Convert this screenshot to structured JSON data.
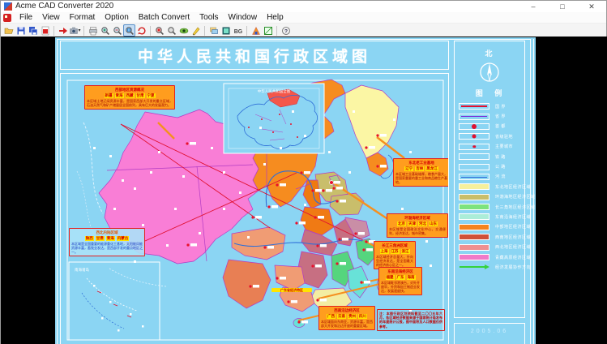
{
  "window": {
    "title": "Acme CAD Converter 2020",
    "controls": [
      {
        "name": "minimize-button",
        "glyph": "–"
      },
      {
        "name": "maximize-button",
        "glyph": "□"
      },
      {
        "name": "close-button",
        "glyph": "✕"
      }
    ]
  },
  "menu": {
    "items": [
      "File",
      "View",
      "Format",
      "Option",
      "Batch Convert",
      "Tools",
      "Window",
      "Help"
    ]
  },
  "toolbar": {
    "buttons": [
      {
        "name": "open-icon",
        "kind": "folder"
      },
      {
        "name": "save-icon",
        "kind": "floppy"
      },
      {
        "name": "save-all-icon",
        "kind": "floppy2"
      },
      {
        "name": "pdf-export-icon",
        "kind": "doc-red"
      },
      {
        "name": "sep"
      },
      {
        "name": "convert-icon",
        "kind": "arrow-red"
      },
      {
        "name": "capture-icon",
        "kind": "camera",
        "caret": true
      },
      {
        "name": "sep"
      },
      {
        "name": "print-icon",
        "kind": "printer"
      },
      {
        "name": "zoom-in-icon",
        "kind": "zoom-plus"
      },
      {
        "name": "zoom-out-icon",
        "kind": "zoom-minus"
      },
      {
        "name": "zoom-window-icon",
        "kind": "zoom-area",
        "active": true
      },
      {
        "name": "zoom-extents-icon",
        "kind": "refresh-red"
      },
      {
        "name": "sep"
      },
      {
        "name": "find-text-icon",
        "kind": "zoom-red"
      },
      {
        "name": "find-next-icon",
        "kind": "zoom-gray"
      },
      {
        "name": "view-mode-icon",
        "kind": "eye"
      },
      {
        "name": "edit-icon",
        "kind": "pen-yellow"
      },
      {
        "name": "sep"
      },
      {
        "name": "layers-icon",
        "kind": "layers"
      },
      {
        "name": "layout-icon",
        "kind": "badge-dark"
      },
      {
        "name": "background-color-icon",
        "kind": "badge-bg",
        "text": "BG"
      },
      {
        "name": "sep"
      },
      {
        "name": "font-icon",
        "kind": "tri-orange"
      },
      {
        "name": "color-box-icon",
        "kind": "box-green"
      },
      {
        "name": "sep"
      },
      {
        "name": "about-icon",
        "kind": "info"
      }
    ]
  },
  "document": {
    "map_title": "中华人民共和国行政区域图",
    "inset_title": "中华人民共和国全图",
    "scs_label": "南海诸岛",
    "date": "2005.06",
    "legend": {
      "north_label": "北",
      "heading": "图 例",
      "symbol_items": [
        {
          "type": "line-red",
          "label": "国 界"
        },
        {
          "type": "line-purple",
          "label": "省 界"
        },
        {
          "type": "dot-lg",
          "label": "首 都"
        },
        {
          "type": "dot-md",
          "label": "省级驻地"
        },
        {
          "type": "dot-sm",
          "label": "主要城市"
        },
        {
          "type": "box-empty",
          "label": "铁 路"
        },
        {
          "type": "box-empty",
          "label": "公 路"
        },
        {
          "type": "river",
          "label": "河 流"
        }
      ],
      "color_items": [
        {
          "color": "#F6F09C",
          "label": "东北地区经济区域"
        },
        {
          "color": "#C9BE6B",
          "label": "环渤海地区经济区域"
        },
        {
          "color": "#7DE37D",
          "label": "长三角地区经济区域"
        },
        {
          "color": "#ABEDD8",
          "label": "东南沿海经济区域"
        },
        {
          "color": "#F5831F",
          "label": "中部地区经济区域"
        },
        {
          "color": "#D05038",
          "label": "西南地区经济区域"
        },
        {
          "color": "#EF9090",
          "label": "西北地区经济区域"
        },
        {
          "color": "#F07AC8",
          "label": "青藏高原经济区域"
        }
      ],
      "arrow_item": {
        "label": "经济发展协作方向"
      }
    },
    "callouts": [
      {
        "title": "西部地区资源概况",
        "names": [
          "新疆",
          "青海",
          "西藏",
          "甘肃",
          "宁夏"
        ],
        "body": "本区域土地辽阔资源丰富，是国家西部大开发的重点区域，石油天然气和矿产储量居全国前列，具有巨大的发展潜力。"
      },
      {
        "title": "东北老工业基地",
        "names": [
          "辽宁",
          "吉林",
          "黑龙江"
        ],
        "body": "本区域工业基础雄厚，粮食产量大，是国家重要的重工业和商品粮生产基地。"
      },
      {
        "title": "环渤海经济区域",
        "names": [
          "北京",
          "天津",
          "河北",
          "山东"
        ],
        "body": "本区域是全国政治文化中心，交通便利，经济发达，城市密集。"
      },
      {
        "title": "长江三角洲区域",
        "names": [
          "上海",
          "江苏",
          "浙江"
        ],
        "body": "本区域经济总量大，外向型经济发达，是全国最大的经济核心区之一。"
      },
      {
        "title": "东南沿海经济区",
        "names": [
          "福建",
          "广东",
          "海南"
        ],
        "body": "本区域毗邻港澳台，对外开放早，外贸和加工制造业发达，发展速度快。"
      },
      {
        "title": "西南沿边经济区",
        "names": [
          "广西",
          "云南",
          "贵州",
          "四川"
        ],
        "body": "本区域面向东南亚，资源丰富，是西部大开发和沿边开放的重要区域。"
      },
      {
        "title": "西北内陆区域",
        "names": [
          "陕西",
          "甘肃",
          "青海",
          "内蒙古"
        ],
        "body": "本区域是全国重要的能源重化工基地，太阳能风能资源丰富，畜牧业发达，是西部开发的重点地区之一。"
      },
      {
        "title": "",
        "names": [],
        "body": "注：本图行政区划资料截至二〇〇五年六月，各区域经济数据来源于国家统计局发布的年度统计公报，图中面积及人口数据仅供参考。"
      },
      {
        "title": "广东省经济特区",
        "names": [],
        "body": ""
      }
    ]
  }
}
